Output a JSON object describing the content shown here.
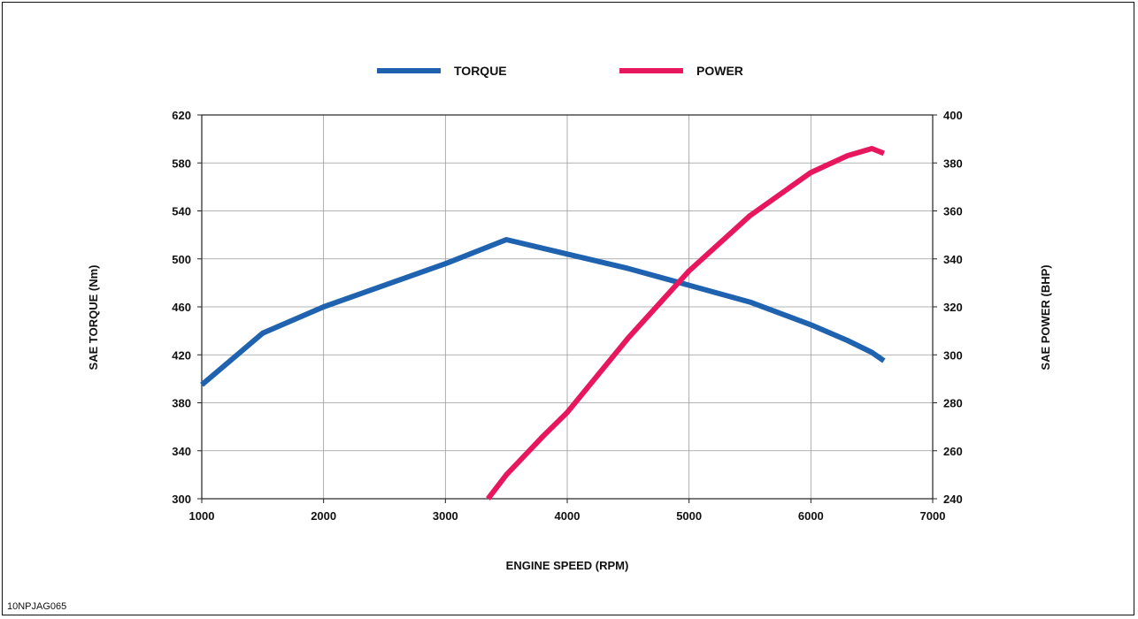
{
  "figure_code": "10NPJAG065",
  "chart_data": {
    "type": "line",
    "title": "",
    "xlabel": "ENGINE SPEED (RPM)",
    "ylabel": "SAE TORQUE (Nm)",
    "y2label": "SAE POWER (BHP)",
    "xlim": [
      1000,
      7000
    ],
    "ylim": [
      300,
      620
    ],
    "y2lim": [
      240,
      400
    ],
    "xticks": [
      "1000",
      "2000",
      "3000",
      "4000",
      "5000",
      "6000",
      "7000"
    ],
    "yticks": [
      "300",
      "340",
      "380",
      "420",
      "460",
      "500",
      "540",
      "580",
      "620"
    ],
    "y2ticks": [
      "240",
      "260",
      "280",
      "300",
      "320",
      "340",
      "360",
      "380",
      "400"
    ],
    "grid": true,
    "legend_position": "top-center",
    "series": [
      {
        "name": "TORQUE",
        "axis": "left",
        "color": "#1f63b0",
        "x": [
          1000,
          1500,
          2000,
          2500,
          3000,
          3500,
          4000,
          4500,
          5000,
          5500,
          6000,
          6300,
          6500,
          6600
        ],
        "y": [
          395,
          438,
          460,
          478,
          496,
          516,
          504,
          492,
          478,
          464,
          445,
          432,
          422,
          415
        ]
      },
      {
        "name": "POWER",
        "axis": "right",
        "color": "#e8175d",
        "x": [
          3350,
          3500,
          3800,
          4000,
          4500,
          5000,
          5500,
          6000,
          6300,
          6500,
          6600
        ],
        "y": [
          240,
          250,
          266,
          276,
          307,
          335,
          358,
          376,
          383,
          386,
          384
        ]
      }
    ]
  }
}
